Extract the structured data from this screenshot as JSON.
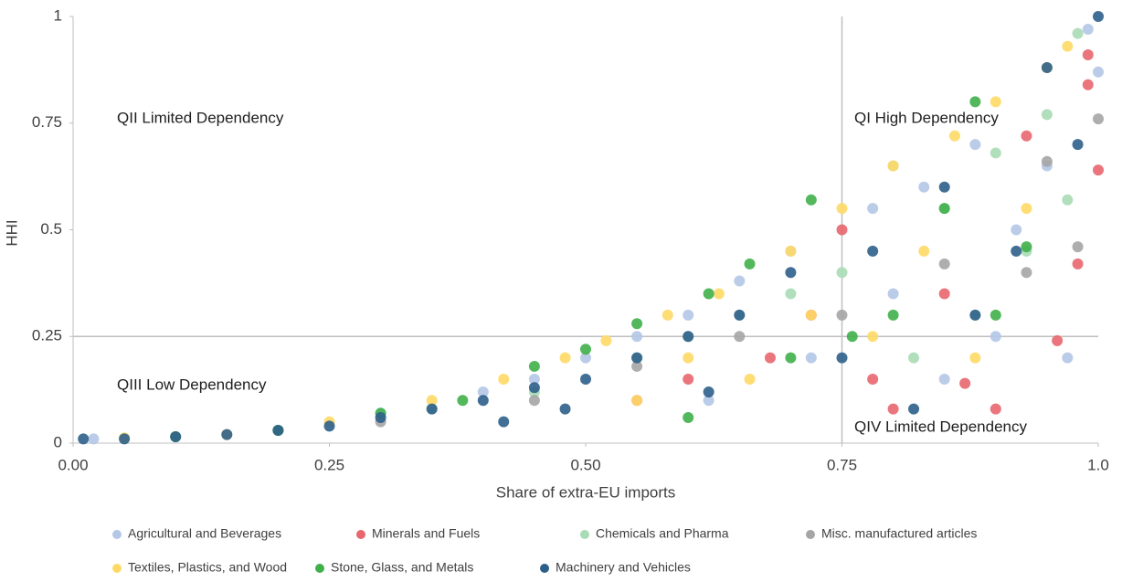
{
  "chart_data": {
    "type": "scatter",
    "x_label": "Share of extra-EU imports",
    "y_label": "HHI",
    "annotations": [
      "QII Limited Dependency",
      "QI High Dependency",
      "QIII Low Dependency",
      "QIV Limited Dependency"
    ],
    "xlim": [
      0,
      1
    ],
    "ylim": [
      0,
      1
    ],
    "xticks": [
      {
        "value": 0,
        "label": "0.00"
      },
      0.25,
      {
        "value": 0.5,
        "label": "0.50"
      },
      0.75,
      {
        "value": 1,
        "label": "1.0"
      }
    ],
    "yticks": [
      0,
      0.25,
      0.5,
      0.75,
      1
    ],
    "reference_lines": {
      "x": 0.75,
      "y": 0.25
    },
    "legend": "bottom",
    "series": [
      {
        "name": "Agricultural and Beverages",
        "color": "#b4c7e7",
        "x": [
          0.02,
          0.1,
          0.2,
          0.3,
          0.4,
          0.45,
          0.5,
          0.55,
          0.6,
          0.62,
          0.65,
          0.7,
          0.72,
          0.78,
          0.8,
          0.83,
          0.85,
          0.88,
          0.9,
          0.92,
          0.95,
          0.97,
          0.99,
          1.0
        ],
        "values": [
          0.01,
          0.015,
          0.03,
          0.07,
          0.12,
          0.15,
          0.2,
          0.25,
          0.3,
          0.1,
          0.38,
          0.45,
          0.2,
          0.55,
          0.35,
          0.6,
          0.15,
          0.7,
          0.25,
          0.5,
          0.65,
          0.2,
          0.97,
          0.87
        ]
      },
      {
        "name": "Minerals and Fuels",
        "color": "#e8666e",
        "x": [
          0.55,
          0.6,
          0.68,
          0.72,
          0.75,
          0.78,
          0.8,
          0.85,
          0.87,
          0.9,
          0.93,
          0.96,
          0.98,
          0.99,
          1.0,
          0.99
        ],
        "values": [
          0.1,
          0.15,
          0.2,
          0.3,
          0.5,
          0.15,
          0.08,
          0.35,
          0.14,
          0.08,
          0.72,
          0.24,
          0.42,
          0.91,
          0.64,
          0.84
        ]
      },
      {
        "name": "Chemicals and Pharma",
        "color": "#a8dcb5",
        "x": [
          0.05,
          0.2,
          0.35,
          0.45,
          0.55,
          0.6,
          0.65,
          0.7,
          0.75,
          0.8,
          0.82,
          0.85,
          0.88,
          0.9,
          0.93,
          0.95,
          0.97,
          0.98
        ],
        "values": [
          0.012,
          0.03,
          0.08,
          0.12,
          0.2,
          0.25,
          0.3,
          0.35,
          0.4,
          0.65,
          0.2,
          0.55,
          0.3,
          0.68,
          0.45,
          0.77,
          0.57,
          0.96
        ]
      },
      {
        "name": "Misc. manufactured articles",
        "color": "#a5a5a5",
        "x": [
          0.3,
          0.45,
          0.55,
          0.65,
          0.75,
          0.85,
          0.93,
          0.95,
          0.98,
          1.0
        ],
        "values": [
          0.05,
          0.1,
          0.18,
          0.25,
          0.3,
          0.42,
          0.4,
          0.66,
          0.46,
          0.76
        ]
      },
      {
        "name": "Textiles, Plastics, and Wood",
        "color": "#ffd966",
        "x": [
          0.05,
          0.15,
          0.25,
          0.35,
          0.42,
          0.48,
          0.52,
          0.55,
          0.58,
          0.6,
          0.63,
          0.66,
          0.7,
          0.72,
          0.75,
          0.78,
          0.8,
          0.83,
          0.86,
          0.88,
          0.9,
          0.93,
          0.95,
          0.97
        ],
        "values": [
          0.012,
          0.02,
          0.05,
          0.1,
          0.15,
          0.2,
          0.24,
          0.1,
          0.3,
          0.2,
          0.35,
          0.15,
          0.45,
          0.3,
          0.55,
          0.25,
          0.65,
          0.45,
          0.72,
          0.2,
          0.8,
          0.55,
          0.88,
          0.93
        ]
      },
      {
        "name": "Stone, Glass, and Metals",
        "color": "#40b04a",
        "x": [
          0.1,
          0.2,
          0.3,
          0.38,
          0.45,
          0.5,
          0.55,
          0.6,
          0.62,
          0.66,
          0.7,
          0.72,
          0.76,
          0.8,
          0.85,
          0.88,
          0.9,
          0.93
        ],
        "values": [
          0.015,
          0.03,
          0.07,
          0.1,
          0.18,
          0.22,
          0.28,
          0.06,
          0.35,
          0.42,
          0.2,
          0.57,
          0.25,
          0.3,
          0.55,
          0.8,
          0.3,
          0.46
        ]
      },
      {
        "name": "Machinery and Vehicles",
        "color": "#2e5f8a",
        "x": [
          0.01,
          0.05,
          0.1,
          0.15,
          0.2,
          0.25,
          0.3,
          0.35,
          0.4,
          0.42,
          0.45,
          0.48,
          0.5,
          0.55,
          0.6,
          0.62,
          0.65,
          0.7,
          0.75,
          0.78,
          0.82,
          0.85,
          0.88,
          0.92,
          0.95,
          0.98,
          1.0
        ],
        "values": [
          0.01,
          0.01,
          0.015,
          0.02,
          0.03,
          0.04,
          0.06,
          0.08,
          0.1,
          0.05,
          0.13,
          0.08,
          0.15,
          0.2,
          0.25,
          0.12,
          0.3,
          0.4,
          0.2,
          0.45,
          0.08,
          0.6,
          0.3,
          0.45,
          0.88,
          0.7,
          1.0
        ]
      }
    ]
  }
}
